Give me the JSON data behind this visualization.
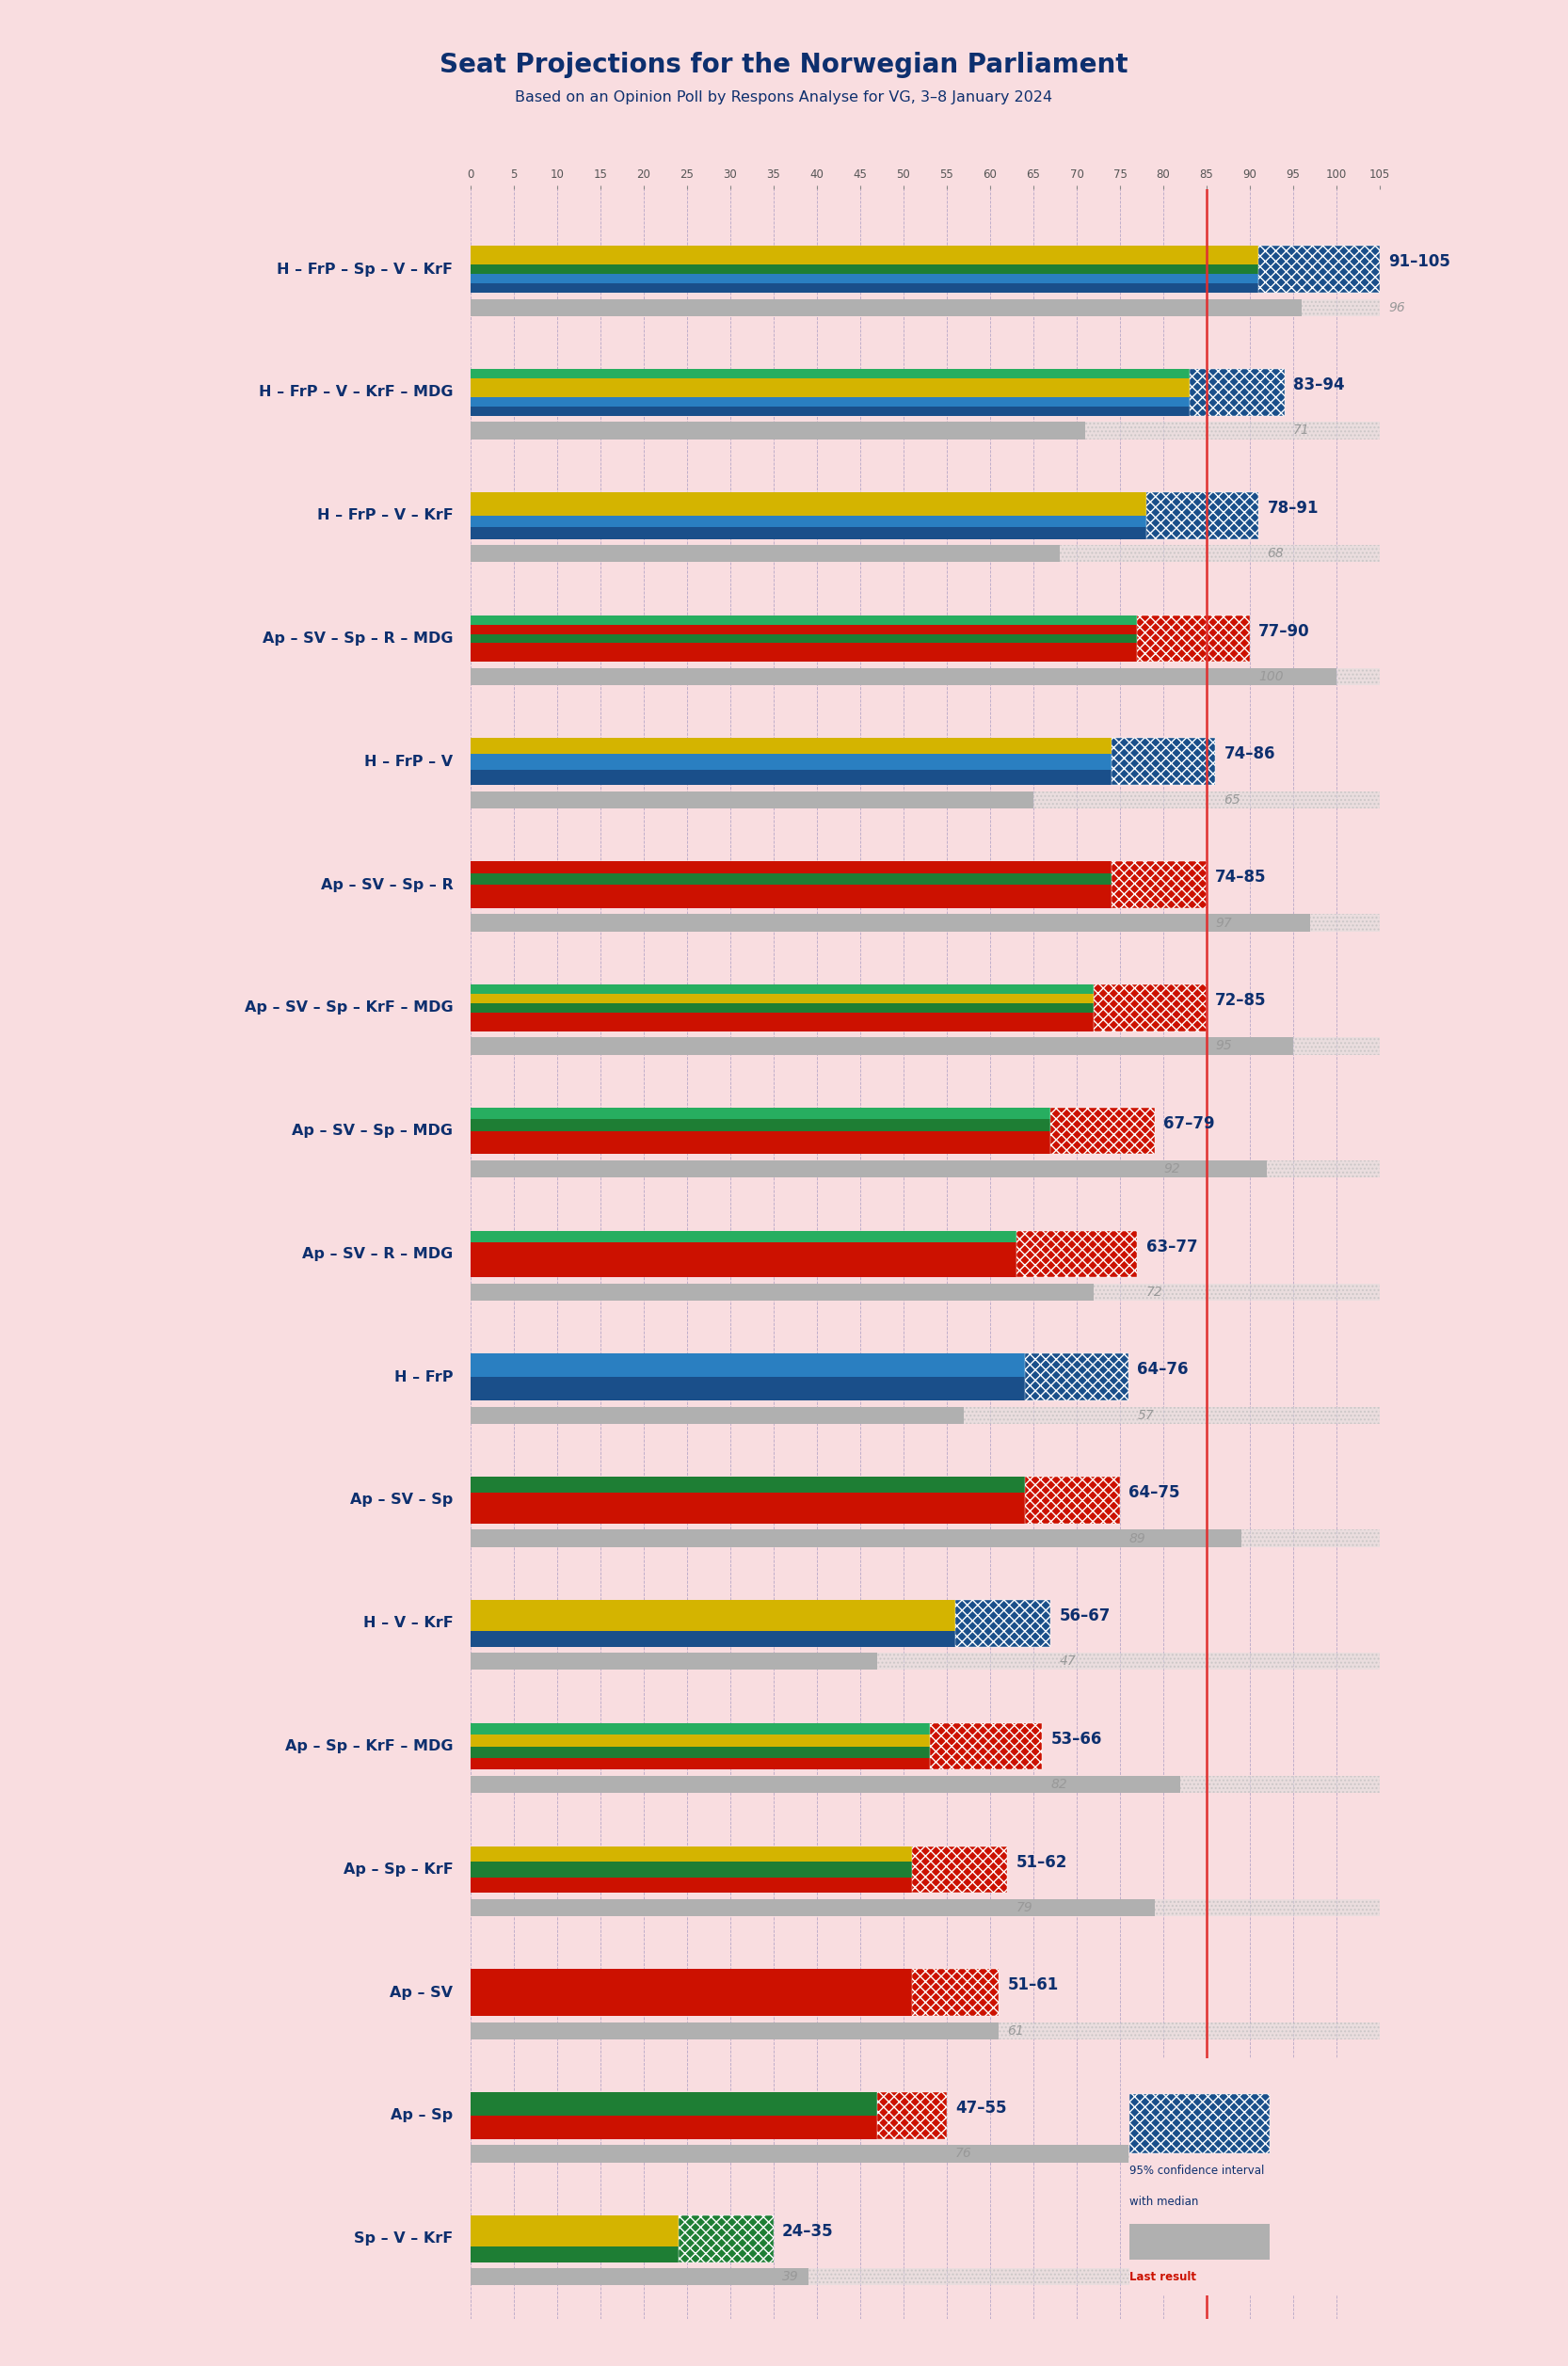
{
  "title": "Seat Projections for the Norwegian Parliament",
  "subtitle": "Based on an Opinion Poll by Respons Analyse for VG, 3–8 January 2024",
  "background_color": "#f9dde0",
  "majority_line": 85,
  "x_max": 105,
  "coalitions": [
    {
      "label": "H – FrP – Sp – V – KrF",
      "ci_low": 91,
      "ci_high": 105,
      "last": 96,
      "main_colors": [
        "#1a4f8a",
        "#2a7fc1",
        "#1e7e34",
        "#d4b400",
        "#d4b400"
      ],
      "ci_color": "#1a4f8a",
      "ci_pattern": "blue"
    },
    {
      "label": "H – FrP – V – KrF – MDG",
      "ci_low": 83,
      "ci_high": 94,
      "last": 71,
      "main_colors": [
        "#1a4f8a",
        "#2a7fc1",
        "#d4b400",
        "#d4b400",
        "#27ae60"
      ],
      "ci_color": "#1a4f8a",
      "ci_pattern": "blue"
    },
    {
      "label": "H – FrP – V – KrF",
      "ci_low": 78,
      "ci_high": 91,
      "last": 68,
      "main_colors": [
        "#1a4f8a",
        "#2a7fc1",
        "#d4b400",
        "#d4b400"
      ],
      "ci_color": "#1a4f8a",
      "ci_pattern": "blue"
    },
    {
      "label": "Ap – SV – Sp – R – MDG",
      "ci_low": 77,
      "ci_high": 90,
      "last": 100,
      "main_colors": [
        "#cc1100",
        "#cc1100",
        "#1e7e34",
        "#cc1100",
        "#27ae60"
      ],
      "ci_color": "#cc1100",
      "ci_pattern": "red"
    },
    {
      "label": "H – FrP – V",
      "ci_low": 74,
      "ci_high": 86,
      "last": 65,
      "main_colors": [
        "#1a4f8a",
        "#2a7fc1",
        "#d4b400"
      ],
      "ci_color": "#1a4f8a",
      "ci_pattern": "blue"
    },
    {
      "label": "Ap – SV – Sp – R",
      "ci_low": 74,
      "ci_high": 85,
      "last": 97,
      "main_colors": [
        "#cc1100",
        "#cc1100",
        "#1e7e34",
        "#cc1100"
      ],
      "ci_color": "#cc1100",
      "ci_pattern": "red"
    },
    {
      "label": "Ap – SV – Sp – KrF – MDG",
      "ci_low": 72,
      "ci_high": 85,
      "last": 95,
      "main_colors": [
        "#cc1100",
        "#cc1100",
        "#1e7e34",
        "#d4b400",
        "#27ae60"
      ],
      "ci_color": "#cc1100",
      "ci_pattern": "red"
    },
    {
      "label": "Ap – SV – Sp – MDG",
      "ci_low": 67,
      "ci_high": 79,
      "last": 92,
      "main_colors": [
        "#cc1100",
        "#cc1100",
        "#1e7e34",
        "#27ae60"
      ],
      "ci_color": "#cc1100",
      "ci_pattern": "red"
    },
    {
      "label": "Ap – SV – R – MDG",
      "ci_low": 63,
      "ci_high": 77,
      "last": 72,
      "main_colors": [
        "#cc1100",
        "#cc1100",
        "#cc1100",
        "#27ae60"
      ],
      "ci_color": "#cc1100",
      "ci_pattern": "red"
    },
    {
      "label": "H – FrP",
      "ci_low": 64,
      "ci_high": 76,
      "last": 57,
      "main_colors": [
        "#1a4f8a",
        "#2a7fc1"
      ],
      "ci_color": "#1a4f8a",
      "ci_pattern": "blue"
    },
    {
      "label": "Ap – SV – Sp",
      "ci_low": 64,
      "ci_high": 75,
      "last": 89,
      "main_colors": [
        "#cc1100",
        "#cc1100",
        "#1e7e34"
      ],
      "ci_color": "#cc1100",
      "ci_pattern": "red"
    },
    {
      "label": "H – V – KrF",
      "ci_low": 56,
      "ci_high": 67,
      "last": 47,
      "main_colors": [
        "#1a4f8a",
        "#d4b400",
        "#d4b400"
      ],
      "ci_color": "#1a4f8a",
      "ci_pattern": "blue"
    },
    {
      "label": "Ap – Sp – KrF – MDG",
      "ci_low": 53,
      "ci_high": 66,
      "last": 82,
      "main_colors": [
        "#cc1100",
        "#1e7e34",
        "#d4b400",
        "#27ae60"
      ],
      "ci_color": "#cc1100",
      "ci_pattern": "red"
    },
    {
      "label": "Ap – Sp – KrF",
      "ci_low": 51,
      "ci_high": 62,
      "last": 79,
      "main_colors": [
        "#cc1100",
        "#1e7e34",
        "#d4b400"
      ],
      "ci_color": "#cc1100",
      "ci_pattern": "red"
    },
    {
      "label": "Ap – SV",
      "ci_low": 51,
      "ci_high": 61,
      "last": 61,
      "main_colors": [
        "#cc1100",
        "#cc1100"
      ],
      "ci_color": "#cc1100",
      "ci_pattern": "red",
      "underline": true
    },
    {
      "label": "Ap – Sp",
      "ci_low": 47,
      "ci_high": 55,
      "last": 76,
      "main_colors": [
        "#cc1100",
        "#1e7e34"
      ],
      "ci_color": "#cc1100",
      "ci_pattern": "red"
    },
    {
      "label": "Sp – V – KrF",
      "ci_low": 24,
      "ci_high": 35,
      "last": 39,
      "main_colors": [
        "#1e7e34",
        "#d4b400",
        "#d4b400"
      ],
      "ci_color": "#1e7e34",
      "ci_pattern": "green"
    }
  ],
  "legend_label_ci": "95% confidence interval\nwith median",
  "legend_label_last": "Last result"
}
